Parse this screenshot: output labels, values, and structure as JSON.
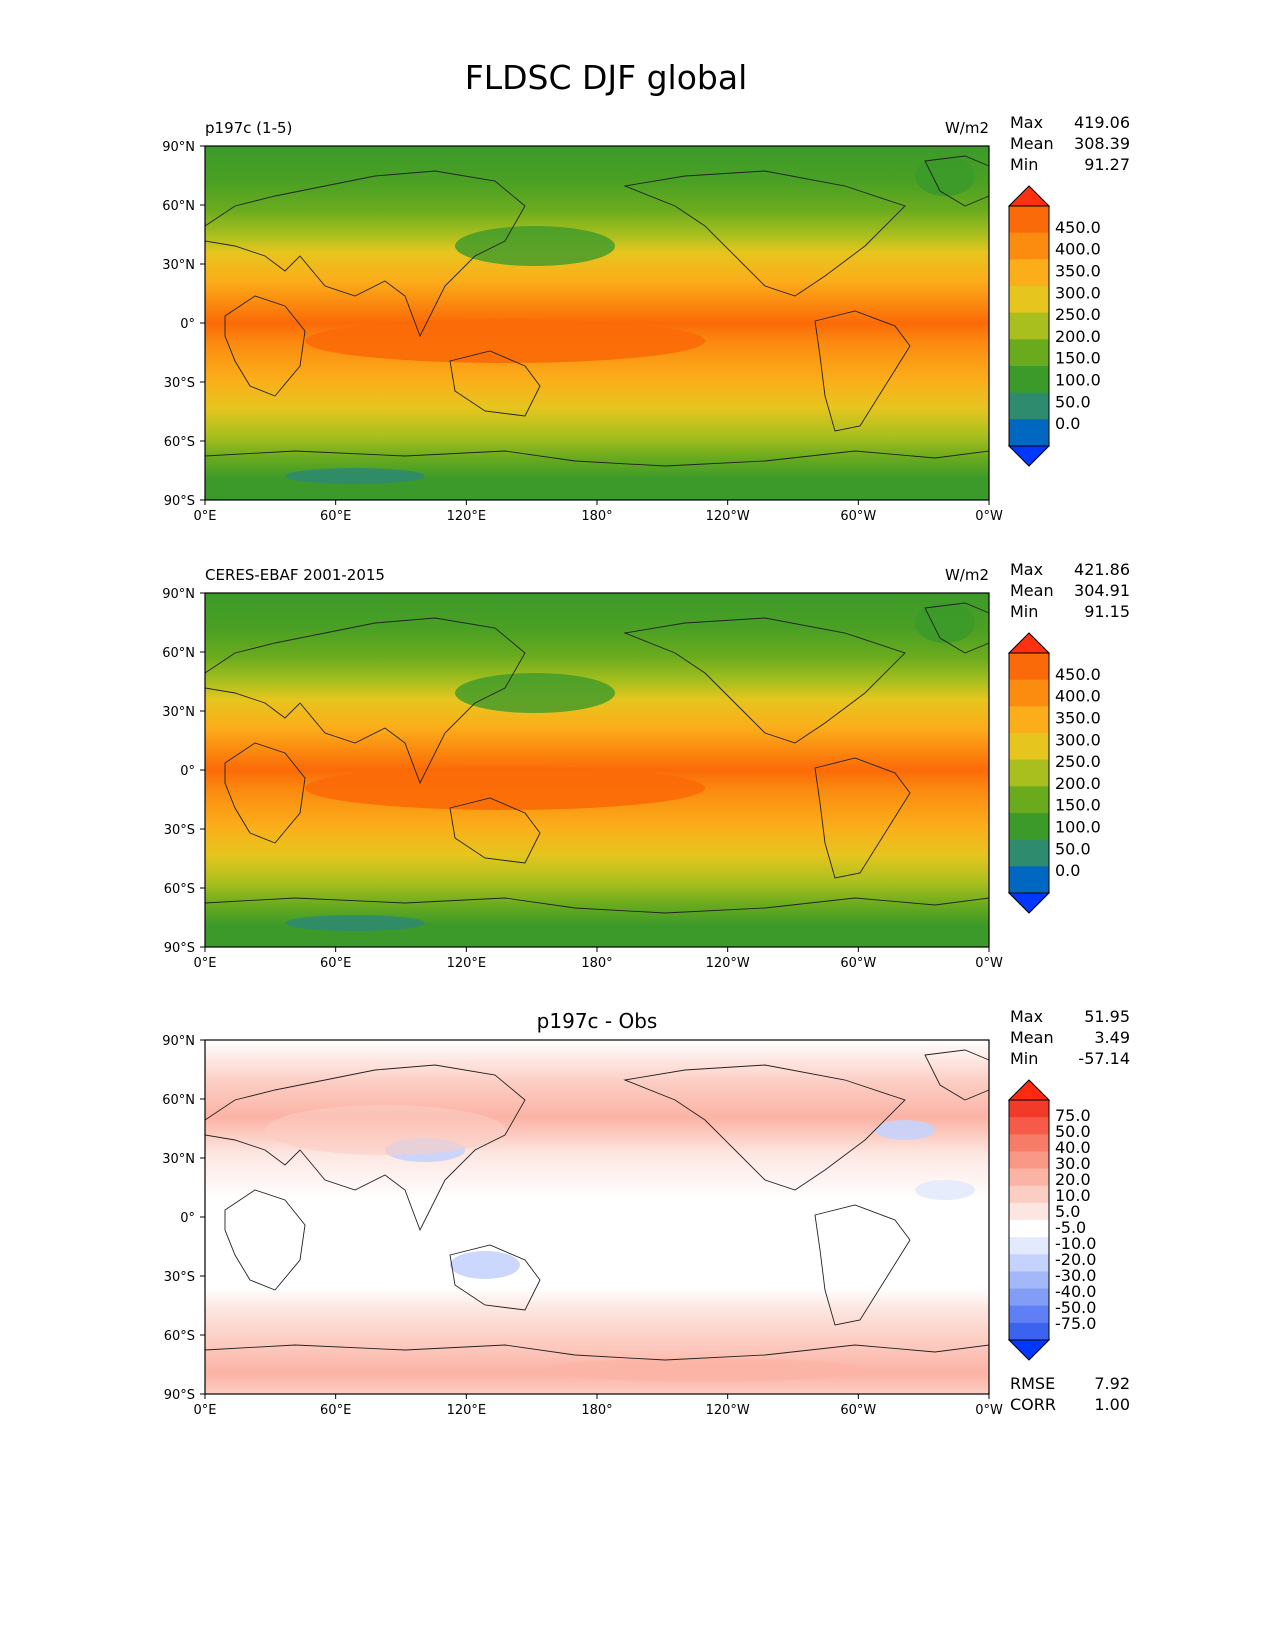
{
  "figure": {
    "title": "FLDSC DJF global"
  },
  "lon_ticks": [
    "0°E",
    "60°E",
    "120°E",
    "180°",
    "120°W",
    "60°W",
    "0°W"
  ],
  "lat_ticks": [
    "90°N",
    "60°N",
    "30°N",
    "0°",
    "30°S",
    "60°S",
    "90°S"
  ],
  "colors": {
    "abs_levels": [
      "#0038ff",
      "#0068c0",
      "#2e8b6e",
      "#3c9a2a",
      "#6aab1e",
      "#a8bf1e",
      "#e6c51e",
      "#fbae1a",
      "#fb8c10",
      "#fb6a08",
      "#ff3010"
    ],
    "diff_levels": [
      "#0038ff",
      "#3c63f0",
      "#5f80f4",
      "#819df6",
      "#a3b8f9",
      "#c5d3fc",
      "#e4eafd",
      "#ffffff",
      "#fde6e1",
      "#fccdc3",
      "#fbb3a5",
      "#f99886",
      "#f77c68",
      "#f55b48",
      "#f23a28",
      "#ff2a10"
    ]
  },
  "chart_data": [
    {
      "type": "heatmap",
      "panel": "top",
      "title": "p197c (1-5)",
      "units": "W/m2",
      "stats": [
        {
          "label": "Max",
          "value": "419.06"
        },
        {
          "label": "Mean",
          "value": "308.39"
        },
        {
          "label": "Min",
          "value": "91.27"
        }
      ],
      "colorbar_labels": [
        "450.0",
        "400.0",
        "350.0",
        "300.0",
        "250.0",
        "200.0",
        "150.0",
        "100.0",
        "50.0",
        "0.0"
      ],
      "xlim": [
        0,
        360
      ],
      "ylim": [
        -90,
        90
      ]
    },
    {
      "type": "heatmap",
      "panel": "middle",
      "title": "CERES-EBAF 2001-2015",
      "units": "W/m2",
      "stats": [
        {
          "label": "Max",
          "value": "421.86"
        },
        {
          "label": "Mean",
          "value": "304.91"
        },
        {
          "label": "Min",
          "value": "91.15"
        }
      ],
      "colorbar_labels": [
        "450.0",
        "400.0",
        "350.0",
        "300.0",
        "250.0",
        "200.0",
        "150.0",
        "100.0",
        "50.0",
        "0.0"
      ],
      "xlim": [
        0,
        360
      ],
      "ylim": [
        -90,
        90
      ]
    },
    {
      "type": "heatmap",
      "panel": "bottom",
      "title": "p197c - Obs",
      "stats": [
        {
          "label": "Max",
          "value": "51.95"
        },
        {
          "label": "Mean",
          "value": "3.49"
        },
        {
          "label": "Min",
          "value": "-57.14"
        }
      ],
      "colorbar_labels": [
        "75.0",
        "50.0",
        "40.0",
        "30.0",
        "20.0",
        "10.0",
        "5.0",
        "-5.0",
        "-10.0",
        "-20.0",
        "-30.0",
        "-40.0",
        "-50.0",
        "-75.0"
      ],
      "footer": [
        {
          "label": "RMSE",
          "value": "7.92"
        },
        {
          "label": "CORR",
          "value": "1.00"
        }
      ],
      "xlim": [
        0,
        360
      ],
      "ylim": [
        -90,
        90
      ]
    }
  ]
}
